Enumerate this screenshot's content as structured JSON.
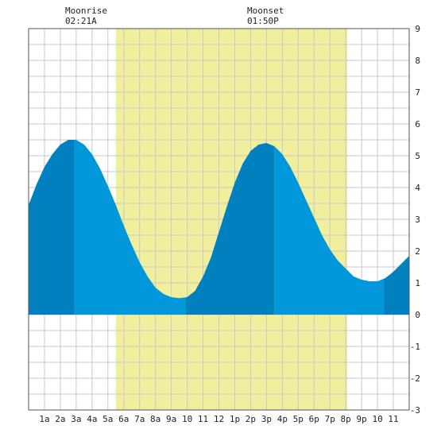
{
  "header": {
    "moonrise_label": "Moonrise",
    "moonrise_time": "02:21A",
    "moonset_label": "Moonset",
    "moonset_time": "01:50P"
  },
  "chart_data": {
    "type": "area",
    "title": "",
    "xlabel": "",
    "ylabel": "",
    "x_ticks": [
      "1a",
      "2a",
      "3a",
      "4a",
      "5a",
      "6a",
      "7a",
      "8a",
      "9a",
      "10",
      "11",
      "12",
      "1p",
      "2p",
      "3p",
      "4p",
      "5p",
      "6p",
      "7p",
      "8p",
      "9p",
      "10",
      "11"
    ],
    "y_ticks": [
      -3,
      -2,
      -1,
      0,
      1,
      2,
      3,
      4,
      5,
      6,
      7,
      8,
      9
    ],
    "xlim": [
      0,
      24
    ],
    "ylim": [
      -3,
      9
    ],
    "grid": true,
    "daylight": {
      "start_hour": 5.5,
      "end_hour": 20.1
    },
    "tides": [
      {
        "type": "high",
        "hour": 2.9,
        "height": 5.5
      },
      {
        "type": "low",
        "hour": 9.9,
        "height": 0.55
      },
      {
        "type": "high",
        "hour": 15.5,
        "height": 5.4
      },
      {
        "type": "low",
        "hour": 22.4,
        "height": 1.05
      }
    ],
    "series": [
      {
        "x": [
          0,
          0.5,
          1,
          1.5,
          2,
          2.5,
          3,
          3.5,
          4,
          4.5,
          5,
          5.5,
          6,
          6.5,
          7,
          7.5,
          8,
          8.5,
          9,
          9.5,
          10,
          10.5,
          11,
          11.5,
          12,
          12.5,
          13,
          13.5,
          14,
          14.5,
          15,
          15.5,
          16,
          16.5,
          17,
          17.5,
          18,
          18.5,
          19,
          19.5,
          20,
          20.5,
          21,
          21.5,
          22,
          22.5,
          23,
          23.5,
          24
        ],
        "values": [
          3.45,
          4.1,
          4.65,
          5.05,
          5.35,
          5.5,
          5.5,
          5.35,
          5.05,
          4.6,
          4.05,
          3.45,
          2.8,
          2.2,
          1.65,
          1.2,
          0.85,
          0.65,
          0.55,
          0.52,
          0.55,
          0.75,
          1.2,
          1.8,
          2.6,
          3.4,
          4.15,
          4.75,
          5.15,
          5.35,
          5.4,
          5.3,
          5.05,
          4.65,
          4.15,
          3.6,
          3.05,
          2.5,
          2.05,
          1.7,
          1.45,
          1.2,
          1.1,
          1.05,
          1.05,
          1.15,
          1.35,
          1.6,
          1.85
        ]
      }
    ]
  },
  "colors": {
    "daylight": "#f0ef9e",
    "tide_light": "#0098db",
    "tide_dark": "#0080bf",
    "grid": "#c8c8c8"
  }
}
